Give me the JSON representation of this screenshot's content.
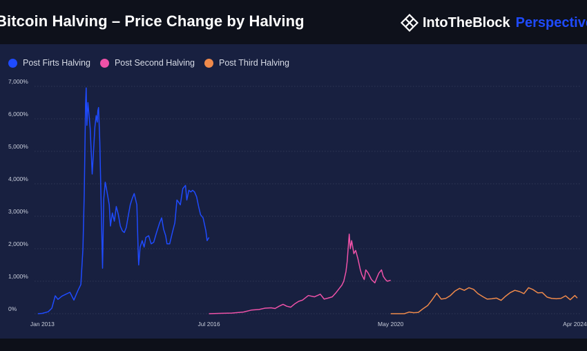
{
  "header": {
    "title": "Bitcoin Halving – Price Change by Halving",
    "brand": "IntoTheBlock",
    "brand_tag": "Perspectives",
    "brand_icon": "intotheblock-logo-icon"
  },
  "colors": {
    "background": "#0f1320",
    "panel": "#182040",
    "grid": "#38415e",
    "accent": "#1f4bff"
  },
  "chart_data": {
    "type": "line",
    "title": "Bitcoin Halving – Price Change by Halving",
    "xlabel": "",
    "ylabel": "",
    "ylim": [
      0,
      7000
    ],
    "y_ticks": [
      "0%",
      "1,000%",
      "2,000%",
      "3,000%",
      "4,000%",
      "5,000%",
      "6,000%",
      "7,000%"
    ],
    "x_ticks": [
      "Jan 2013",
      "Jul 2016",
      "May 2020",
      "Apr 2024"
    ],
    "grid": true,
    "legend_position": "top-left",
    "series": [
      {
        "name": "Post Firts Halving",
        "color": "#1f4bff",
        "x": [
          "2012-11-28",
          "2013-01-01",
          "2013-02-15",
          "2013-03-15",
          "2013-04-10",
          "2013-05-01",
          "2013-06-01",
          "2013-07-01",
          "2013-08-01",
          "2013-09-01",
          "2013-10-01",
          "2013-10-25",
          "2013-11-10",
          "2013-11-20",
          "2013-11-30",
          "2013-12-05",
          "2013-12-10",
          "2013-12-18",
          "2014-01-05",
          "2014-01-20",
          "2014-02-01",
          "2014-02-10",
          "2014-02-20",
          "2014-02-28",
          "2014-03-05",
          "2014-03-10",
          "2014-03-20",
          "2014-04-01",
          "2014-04-10",
          "2014-04-20",
          "2014-05-01",
          "2014-05-15",
          "2014-06-01",
          "2014-06-10",
          "2014-06-25",
          "2014-07-10",
          "2014-07-25",
          "2014-08-10",
          "2014-08-25",
          "2014-09-10",
          "2014-09-25",
          "2014-10-10",
          "2014-10-25",
          "2014-11-10",
          "2014-11-25",
          "2014-12-10",
          "2014-12-31",
          "2015-01-10",
          "2015-01-14",
          "2015-01-25",
          "2015-02-10",
          "2015-02-25",
          "2015-03-10",
          "2015-04-01",
          "2015-04-20",
          "2015-05-10",
          "2015-06-01",
          "2015-06-25",
          "2015-07-10",
          "2015-07-25",
          "2015-08-10",
          "2015-08-20",
          "2015-09-10",
          "2015-10-01",
          "2015-10-20",
          "2015-11-05",
          "2015-11-15",
          "2015-12-01",
          "2015-12-20",
          "2016-01-10",
          "2016-01-20",
          "2016-02-05",
          "2016-02-20",
          "2016-03-05",
          "2016-03-20",
          "2016-04-05",
          "2016-04-20",
          "2016-05-05",
          "2016-05-25",
          "2016-06-15",
          "2016-06-25",
          "2016-07-09"
        ],
        "values": [
          0,
          10,
          60,
          170,
          550,
          440,
          540,
          600,
          660,
          420,
          700,
          900,
          2000,
          3700,
          6450,
          6950,
          5800,
          6500,
          5700,
          4300,
          5100,
          5750,
          6100,
          5900,
          6250,
          6350,
          5300,
          3050,
          1400,
          3550,
          4050,
          3750,
          3350,
          2700,
          3100,
          2850,
          3300,
          3050,
          2700,
          2550,
          2500,
          2650,
          3000,
          3350,
          3550,
          3700,
          3350,
          1900,
          1500,
          2050,
          2250,
          2050,
          2350,
          2400,
          2150,
          2200,
          2500,
          2800,
          2950,
          2600,
          2400,
          2150,
          2150,
          2500,
          2800,
          3500,
          3450,
          3350,
          3850,
          3950,
          3500,
          3800,
          3750,
          3800,
          3750,
          3600,
          3300,
          3050,
          2950,
          2550,
          2250,
          2350
        ]
      },
      {
        "name": "Post Second Halving",
        "color": "#ef52a8",
        "x": [
          "2016-07-09",
          "2016-10-01",
          "2017-01-01",
          "2017-04-01",
          "2017-06-01",
          "2017-08-01",
          "2017-09-15",
          "2017-11-01",
          "2017-12-01",
          "2018-01-01",
          "2018-02-01",
          "2018-03-01",
          "2018-04-01",
          "2018-05-01",
          "2018-06-01",
          "2018-07-01",
          "2018-08-15",
          "2018-10-01",
          "2018-11-15",
          "2018-12-15",
          "2019-01-15",
          "2019-02-15",
          "2019-03-15",
          "2019-04-15",
          "2019-05-01",
          "2019-05-15",
          "2019-06-01",
          "2019-06-10",
          "2019-06-26",
          "2019-07-05",
          "2019-07-15",
          "2019-08-01",
          "2019-08-15",
          "2019-09-01",
          "2019-09-20",
          "2019-10-01",
          "2019-10-20",
          "2019-11-01",
          "2019-11-20",
          "2019-12-15",
          "2020-01-10",
          "2020-01-25",
          "2020-02-10",
          "2020-03-01",
          "2020-03-15",
          "2020-04-01",
          "2020-04-15",
          "2020-05-11"
        ],
        "values": [
          0,
          10,
          20,
          50,
          110,
          130,
          170,
          180,
          160,
          230,
          290,
          230,
          200,
          300,
          380,
          420,
          560,
          520,
          600,
          450,
          480,
          520,
          640,
          800,
          880,
          1000,
          1300,
          1600,
          2450,
          2000,
          2250,
          1850,
          1950,
          1700,
          1350,
          1200,
          1050,
          1350,
          1250,
          1050,
          950,
          1100,
          1250,
          1350,
          1150,
          1050,
          1000,
          1030
        ]
      },
      {
        "name": "Post Third Halving",
        "color": "#f08a4b",
        "x": [
          "2020-05-11",
          "2020-06-15",
          "2020-07-20",
          "2020-08-25",
          "2020-10-01",
          "2020-11-05",
          "2020-12-10",
          "2021-01-15",
          "2021-02-20",
          "2021-03-25",
          "2021-05-01",
          "2021-06-05",
          "2021-07-10",
          "2021-08-15",
          "2021-09-20",
          "2021-10-25",
          "2021-11-30",
          "2022-01-05",
          "2022-02-10",
          "2022-03-15",
          "2022-04-20",
          "2022-05-25",
          "2022-07-01",
          "2022-08-05",
          "2022-09-10",
          "2022-10-15",
          "2022-11-20",
          "2022-12-25",
          "2023-01-30",
          "2023-03-05",
          "2023-04-10",
          "2023-05-15",
          "2023-06-20",
          "2023-07-25",
          "2023-08-30",
          "2023-10-05",
          "2023-11-10",
          "2023-12-15",
          "2024-01-20",
          "2024-02-25",
          "2024-04-01",
          "2024-04-20"
        ],
        "values": [
          0,
          0,
          0,
          0,
          50,
          30,
          40,
          150,
          250,
          420,
          630,
          450,
          470,
          560,
          700,
          780,
          720,
          800,
          750,
          620,
          530,
          450,
          460,
          480,
          410,
          540,
          650,
          720,
          680,
          620,
          800,
          740,
          640,
          650,
          510,
          470,
          460,
          470,
          550,
          430,
          560,
          480
        ]
      }
    ]
  }
}
